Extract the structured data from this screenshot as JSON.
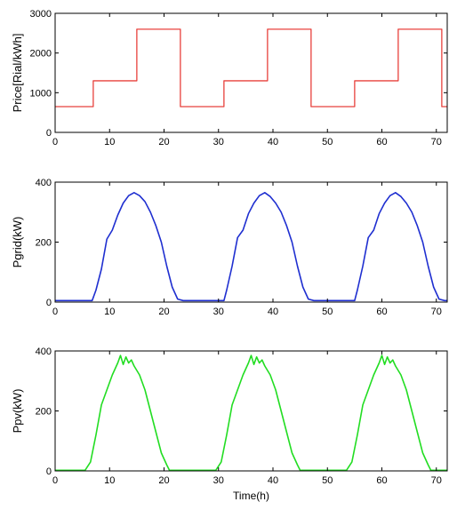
{
  "chart_data": [
    {
      "type": "line",
      "ylabel": "Price[Rial/kWh]",
      "xlabel": "",
      "xlim": [
        0,
        72
      ],
      "ylim": [
        0,
        3000
      ],
      "xticks": [
        0,
        10,
        20,
        30,
        40,
        50,
        60,
        70
      ],
      "yticks": [
        0,
        1000,
        2000,
        3000
      ],
      "xtick_labels": [
        "0",
        "10",
        "20",
        "30",
        "40",
        "50",
        "60",
        "70"
      ],
      "ytick_labels": [
        "0",
        "1000",
        "2000",
        "3000"
      ],
      "grid": false,
      "series": [
        {
          "color": "#e8403c",
          "step": true,
          "x": [
            0,
            7,
            7,
            15,
            15,
            23,
            23,
            31,
            31,
            39,
            39,
            47,
            47,
            55,
            55,
            63,
            63,
            71,
            71,
            72
          ],
          "y": [
            650,
            650,
            1300,
            1300,
            2600,
            2600,
            650,
            650,
            1300,
            1300,
            2600,
            2600,
            650,
            650,
            1300,
            1300,
            2600,
            2600,
            650,
            650
          ]
        }
      ]
    },
    {
      "type": "line",
      "ylabel": "Pgrid(kW)",
      "xlabel": "",
      "xlim": [
        0,
        72
      ],
      "ylim": [
        0,
        400
      ],
      "xticks": [
        0,
        10,
        20,
        30,
        40,
        50,
        60,
        70
      ],
      "yticks": [
        0,
        200,
        400
      ],
      "xtick_labels": [
        "0",
        "10",
        "20",
        "30",
        "40",
        "50",
        "60",
        "70"
      ],
      "ytick_labels": [
        "0",
        "200",
        "400"
      ],
      "grid": false,
      "series": [
        {
          "color": "#1f2fd0",
          "x": [
            0,
            6.8,
            7.5,
            8.5,
            9.5,
            10.5,
            11.5,
            12.5,
            13.5,
            14.5,
            15.5,
            16.5,
            17.5,
            18.5,
            19.5,
            20.5,
            21.5,
            22.5,
            23.5,
            31,
            31.5,
            32.5,
            33.5,
            34.5,
            35.5,
            36.5,
            37.5,
            38.5,
            39.5,
            40.5,
            41.5,
            42.5,
            43.5,
            44.5,
            45.5,
            46.5,
            47.5,
            55,
            55.5,
            56.5,
            57.5,
            58.5,
            59.5,
            60.5,
            61.5,
            62.5,
            63.5,
            64.5,
            65.5,
            66.5,
            67.5,
            68.5,
            69.5,
            70.5,
            71.5,
            72
          ],
          "y": [
            5,
            5,
            40,
            110,
            210,
            240,
            290,
            330,
            355,
            365,
            355,
            335,
            300,
            255,
            200,
            120,
            50,
            10,
            5,
            5,
            40,
            120,
            215,
            240,
            295,
            330,
            355,
            365,
            352,
            330,
            300,
            255,
            200,
            120,
            50,
            10,
            5,
            5,
            40,
            120,
            215,
            240,
            295,
            330,
            355,
            365,
            352,
            330,
            300,
            255,
            200,
            120,
            50,
            10,
            5,
            5
          ]
        }
      ]
    },
    {
      "type": "line",
      "ylabel": "Ppv(kW)",
      "xlabel": "Time(h)",
      "xlim": [
        0,
        72
      ],
      "ylim": [
        0,
        400
      ],
      "xticks": [
        0,
        10,
        20,
        30,
        40,
        50,
        60,
        70
      ],
      "yticks": [
        0,
        200,
        400
      ],
      "xtick_labels": [
        "0",
        "10",
        "20",
        "30",
        "40",
        "50",
        "60",
        "70"
      ],
      "ytick_labels": [
        "0",
        "200",
        "400"
      ],
      "grid": false,
      "series": [
        {
          "color": "#22dd22",
          "x": [
            0,
            5.5,
            6.5,
            7.5,
            8.5,
            9.5,
            10.5,
            11.5,
            12,
            12.5,
            13,
            13.5,
            14,
            14.5,
            15.5,
            16.5,
            17.5,
            18.5,
            19.5,
            20.5,
            21,
            29.5,
            30.5,
            31.5,
            32.5,
            33.5,
            34.5,
            35.5,
            36,
            36.5,
            37,
            37.5,
            38,
            38.5,
            39.5,
            40.5,
            41.5,
            42.5,
            43.5,
            44.5,
            45,
            53.5,
            54.5,
            55.5,
            56.5,
            57.5,
            58.5,
            59.5,
            60,
            60.5,
            61,
            61.5,
            62,
            62.5,
            63.5,
            64.5,
            65.5,
            66.5,
            67.5,
            68.5,
            69,
            72
          ],
          "y": [
            2,
            2,
            30,
            120,
            220,
            270,
            320,
            360,
            385,
            355,
            380,
            360,
            370,
            350,
            320,
            270,
            200,
            130,
            60,
            20,
            2,
            2,
            30,
            120,
            220,
            270,
            320,
            360,
            385,
            355,
            380,
            360,
            370,
            350,
            320,
            270,
            200,
            130,
            60,
            20,
            2,
            2,
            30,
            120,
            220,
            270,
            320,
            360,
            385,
            355,
            380,
            360,
            370,
            350,
            320,
            270,
            200,
            130,
            60,
            20,
            2,
            2
          ]
        }
      ]
    }
  ]
}
